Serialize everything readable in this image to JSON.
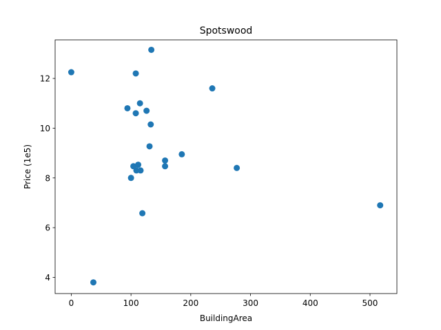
{
  "chart_data": {
    "type": "scatter",
    "title": "Spotswood",
    "xlabel": "BuildingArea",
    "ylabel": "Price (1e5)",
    "xlim": [
      -27,
      545
    ],
    "ylim": [
      3.35,
      13.55
    ],
    "xticks": [
      0,
      100,
      200,
      300,
      400,
      500
    ],
    "yticks": [
      4,
      6,
      8,
      10,
      12
    ],
    "grid": false,
    "series_color": "#1f77b4",
    "points": [
      {
        "x": 0,
        "y": 12.25
      },
      {
        "x": 37,
        "y": 3.8
      },
      {
        "x": 94,
        "y": 10.8
      },
      {
        "x": 100,
        "y": 8.0
      },
      {
        "x": 104,
        "y": 8.47
      },
      {
        "x": 108,
        "y": 12.2
      },
      {
        "x": 108,
        "y": 10.6
      },
      {
        "x": 109,
        "y": 8.3
      },
      {
        "x": 112,
        "y": 8.53
      },
      {
        "x": 115,
        "y": 11.0
      },
      {
        "x": 116,
        "y": 8.3
      },
      {
        "x": 119,
        "y": 6.58
      },
      {
        "x": 126,
        "y": 10.7
      },
      {
        "x": 131,
        "y": 9.27
      },
      {
        "x": 133,
        "y": 10.15
      },
      {
        "x": 134,
        "y": 13.15
      },
      {
        "x": 157,
        "y": 8.7
      },
      {
        "x": 157,
        "y": 8.47
      },
      {
        "x": 185,
        "y": 8.95
      },
      {
        "x": 236,
        "y": 11.6
      },
      {
        "x": 277,
        "y": 8.4
      },
      {
        "x": 517,
        "y": 6.9
      }
    ]
  }
}
